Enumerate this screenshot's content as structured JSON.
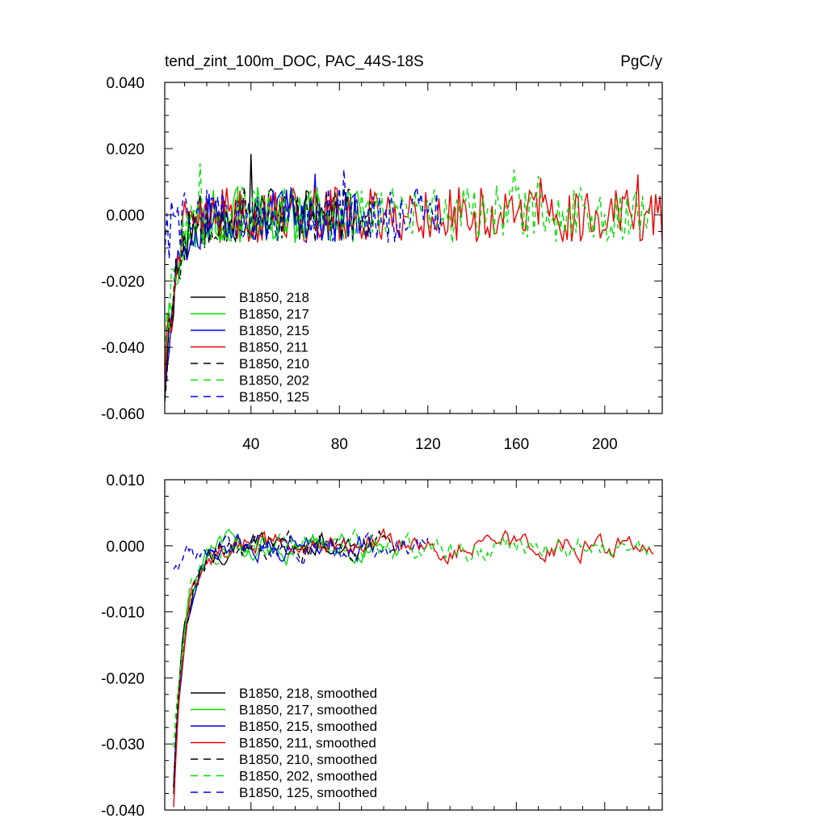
{
  "figure": {
    "title_left": "tend_zint_100m_DOC, PAC_44S-18S",
    "title_right": "PgC/y"
  },
  "chart_data": [
    {
      "type": "line",
      "title": "tend_zint_100m_DOC, PAC_44S-18S",
      "units": "PgC/y",
      "xlabel": "",
      "ylabel": "",
      "xlim": [
        1,
        226
      ],
      "ylim": [
        -0.06,
        0.04
      ],
      "x_ticks": [
        40,
        80,
        120,
        160,
        200
      ],
      "x_tick_labels": [
        "40",
        "80",
        "120",
        "160",
        "200"
      ],
      "y_ticks": [
        -0.06,
        -0.04,
        -0.02,
        0.0,
        0.02,
        0.04
      ],
      "y_tick_labels": [
        "-0.060",
        "-0.040",
        "-0.020",
        "0.000",
        "0.020",
        "0.040"
      ],
      "legend_position": "lower-left",
      "series": [
        {
          "name": "B1850, 218",
          "color": "#000000",
          "dash": "solid",
          "start": 1,
          "end": 80,
          "early": -0.052,
          "noise": 0.0085,
          "seed": 11
        },
        {
          "name": "B1850, 217",
          "color": "#00dd00",
          "dash": "solid",
          "start": 1,
          "end": 92,
          "early": -0.045,
          "noise": 0.0085,
          "seed": 23
        },
        {
          "name": "B1850, 215",
          "color": "#0000ee",
          "dash": "solid",
          "start": 1,
          "end": 88,
          "early": -0.05,
          "noise": 0.0085,
          "seed": 37
        },
        {
          "name": "B1850, 211",
          "color": "#ee0000",
          "dash": "solid",
          "start": 1,
          "end": 226,
          "early": -0.05,
          "noise": 0.0085,
          "seed": 41
        },
        {
          "name": "B1850, 210",
          "color": "#000000",
          "dash": "dashed",
          "start": 1,
          "end": 96,
          "early": -0.052,
          "noise": 0.0085,
          "seed": 53
        },
        {
          "name": "B1850, 202",
          "color": "#00dd00",
          "dash": "dashed",
          "start": 1,
          "end": 220,
          "early": -0.04,
          "noise": 0.0085,
          "seed": 67
        },
        {
          "name": "B1850, 125",
          "color": "#0000ee",
          "dash": "dashed",
          "start": 1,
          "end": 126,
          "early": -0.008,
          "noise": 0.0085,
          "seed": 79
        }
      ]
    },
    {
      "type": "line",
      "title": "",
      "xlabel": "",
      "ylabel": "",
      "xlim": [
        1,
        226
      ],
      "ylim": [
        -0.04,
        0.01
      ],
      "x_ticks": [
        40,
        80,
        120,
        160,
        200
      ],
      "x_tick_labels": [],
      "y_ticks": [
        -0.04,
        -0.03,
        -0.02,
        -0.01,
        0.0,
        0.01
      ],
      "y_tick_labels": [
        "-0.040",
        "-0.030",
        "-0.020",
        "-0.010",
        "0.000",
        "0.010"
      ],
      "legend_position": "lower-left",
      "series": [
        {
          "name": "B1850, 218, smoothed",
          "color": "#000000",
          "dash": "solid",
          "start": 5,
          "end": 87,
          "early": -0.037,
          "noise": 0.0022,
          "seed": 101
        },
        {
          "name": "B1850, 217, smoothed",
          "color": "#00dd00",
          "dash": "solid",
          "start": 5,
          "end": 100,
          "early": -0.035,
          "noise": 0.0022,
          "seed": 113
        },
        {
          "name": "B1850, 215, smoothed",
          "color": "#0000ee",
          "dash": "solid",
          "start": 5,
          "end": 95,
          "early": -0.036,
          "noise": 0.0022,
          "seed": 127
        },
        {
          "name": "B1850, 211, smoothed",
          "color": "#ee0000",
          "dash": "solid",
          "start": 5,
          "end": 222,
          "early": -0.039,
          "noise": 0.0022,
          "seed": 131
        },
        {
          "name": "B1850, 210, smoothed",
          "color": "#000000",
          "dash": "dashed",
          "start": 5,
          "end": 105,
          "early": -0.036,
          "noise": 0.0022,
          "seed": 149
        },
        {
          "name": "B1850, 202, smoothed",
          "color": "#00dd00",
          "dash": "dashed",
          "start": 5,
          "end": 220,
          "early": -0.03,
          "noise": 0.0022,
          "seed": 157
        },
        {
          "name": "B1850, 125, smoothed",
          "color": "#0000ee",
          "dash": "dashed",
          "start": 5,
          "end": 120,
          "early": -0.003,
          "noise": 0.0022,
          "seed": 163
        }
      ]
    }
  ]
}
